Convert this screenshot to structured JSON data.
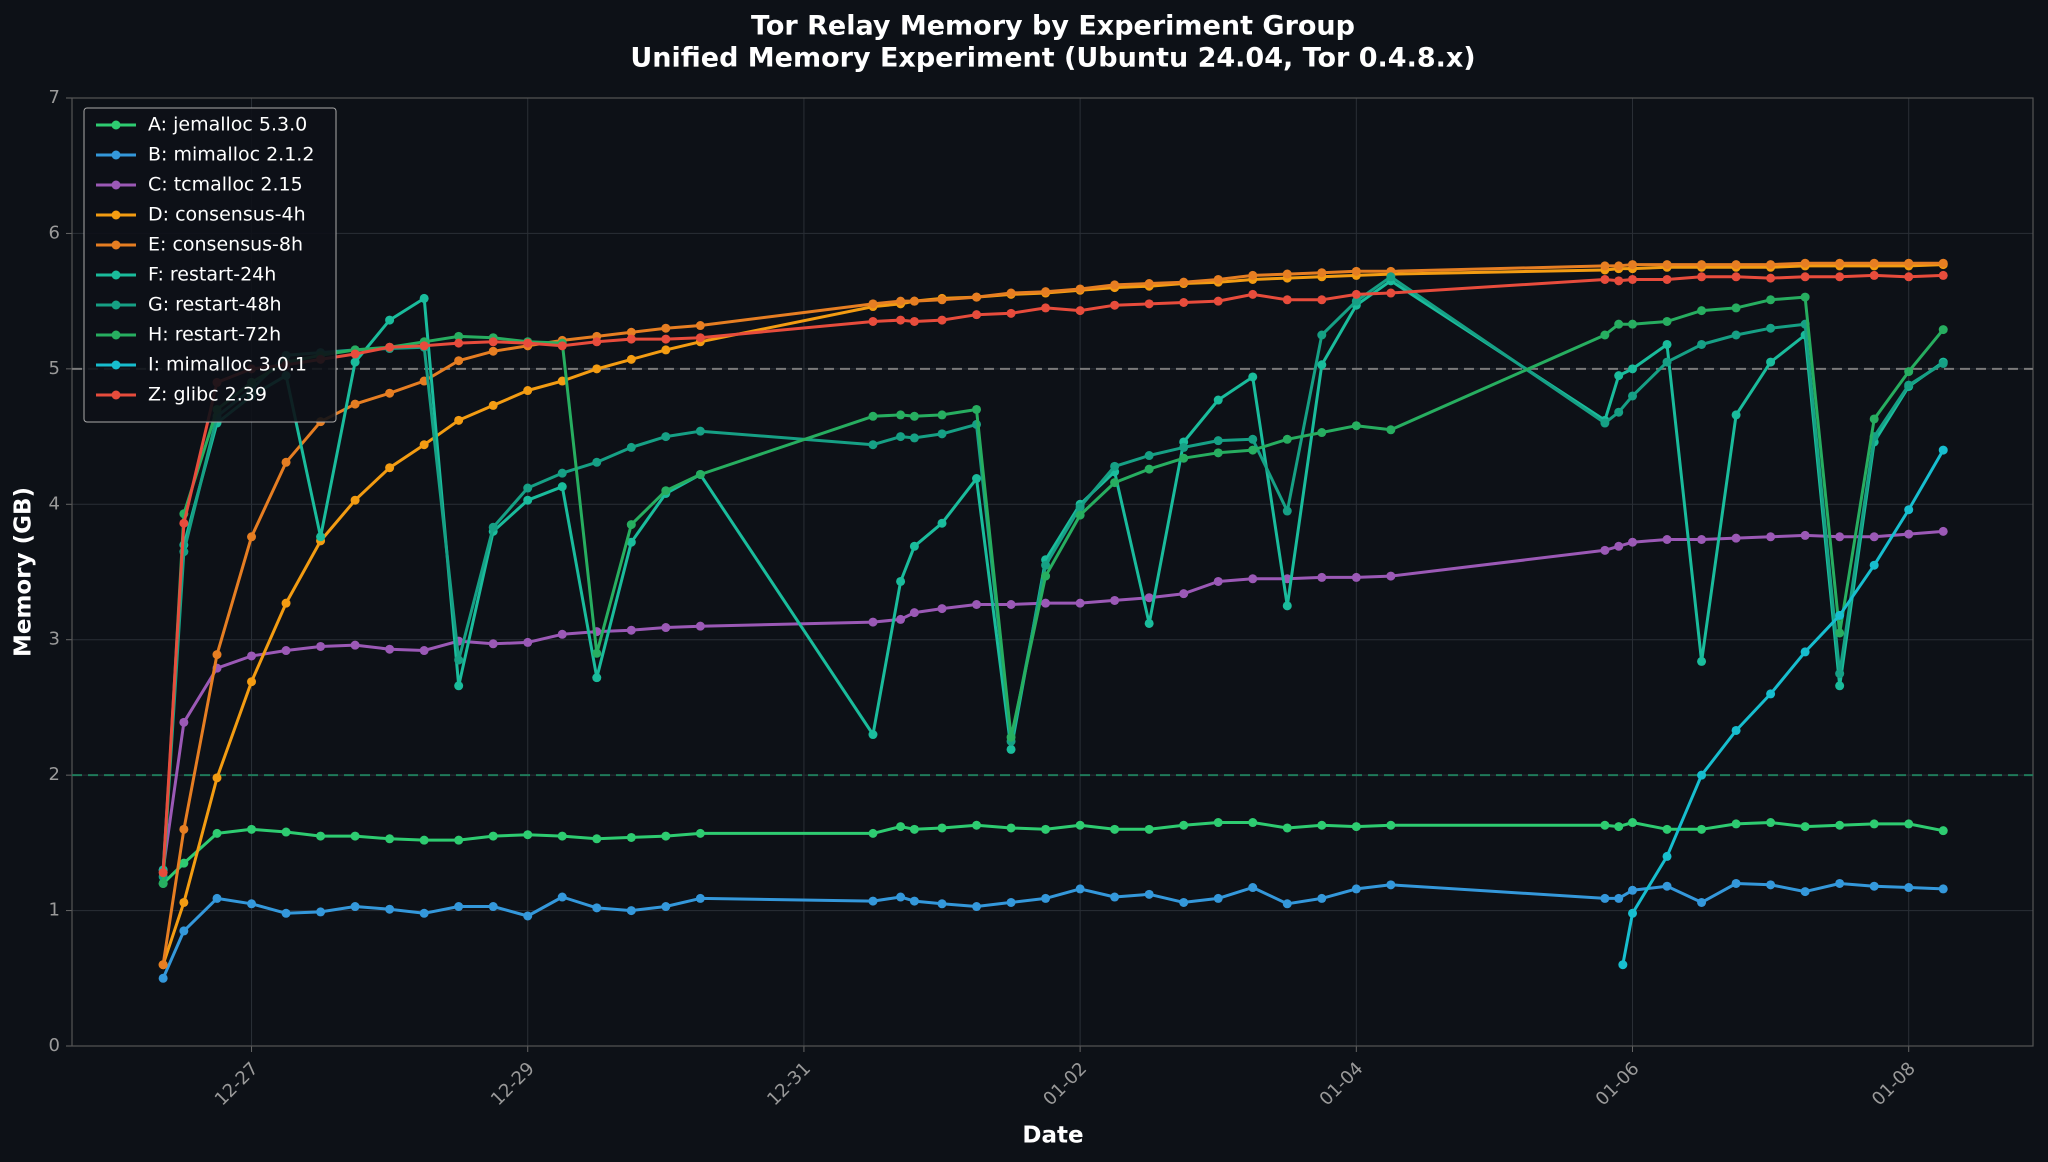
{
  "chart_data": {
    "type": "line",
    "title": "Tor Relay Memory by Experiment Group",
    "subtitle": "Unified Memory Experiment (Ubuntu 24.04, Tor 0.4.8.x)",
    "x_label": "Date",
    "y_label": "Memory (GB)",
    "xlim": [
      25.7,
      39.9
    ],
    "ylim": [
      0,
      7
    ],
    "xticks": [
      {
        "value": 27,
        "label": "12-27"
      },
      {
        "value": 29,
        "label": "12-29"
      },
      {
        "value": 31,
        "label": "12-31"
      },
      {
        "value": 33,
        "label": "01-02"
      },
      {
        "value": 35,
        "label": "01-04"
      },
      {
        "value": 37,
        "label": "01-06"
      },
      {
        "value": 39,
        "label": "01-08"
      }
    ],
    "yticks": [
      0,
      1,
      2,
      3,
      4,
      5,
      6,
      7
    ],
    "grid": true,
    "legend": "upper left",
    "hlines": [
      {
        "value": 5,
        "color": "#7a7a7a"
      },
      {
        "value": 2,
        "color": "#1f7a5a"
      }
    ],
    "x": [
      26.36,
      26.51,
      26.75,
      27,
      27.25,
      27.5,
      27.75,
      28,
      28.25,
      28.5,
      28.75,
      29,
      29.25,
      29.5,
      29.75,
      30,
      30.25,
      31.5,
      31.7,
      31.8,
      32,
      32.25,
      32.5,
      32.75,
      33,
      33.25,
      33.5,
      33.75,
      34,
      34.25,
      34.5,
      34.75,
      35,
      35.25,
      36.8,
      36.9,
      37,
      37.25,
      37.5,
      37.75,
      38,
      38.25,
      38.5,
      38.75,
      39,
      39.25
    ],
    "series": [
      {
        "name": "A: jemalloc 5.3.0",
        "color": "#2ecc71",
        "values": [
          1.2,
          1.35,
          1.57,
          1.6,
          1.58,
          1.55,
          1.55,
          1.53,
          1.52,
          1.52,
          1.55,
          1.56,
          1.55,
          1.53,
          1.54,
          1.55,
          1.57,
          1.57,
          1.62,
          1.6,
          1.61,
          1.63,
          1.61,
          1.6,
          1.63,
          1.6,
          1.6,
          1.63,
          1.65,
          1.65,
          1.61,
          1.63,
          1.62,
          1.63,
          1.63,
          1.62,
          1.65,
          1.6,
          1.6,
          1.64,
          1.65,
          1.62,
          1.63,
          1.64,
          1.64,
          1.59
        ]
      },
      {
        "name": "B: mimalloc 2.1.2",
        "color": "#3498db",
        "values": [
          0.5,
          0.85,
          1.09,
          1.05,
          0.98,
          0.99,
          1.03,
          1.01,
          0.98,
          1.03,
          1.03,
          0.96,
          1.1,
          1.02,
          1.0,
          1.03,
          1.09,
          1.07,
          1.1,
          1.07,
          1.05,
          1.03,
          1.06,
          1.09,
          1.16,
          1.1,
          1.12,
          1.06,
          1.09,
          1.17,
          1.05,
          1.09,
          1.16,
          1.19,
          1.09,
          1.09,
          1.15,
          1.18,
          1.06,
          1.2,
          1.19,
          1.14,
          1.2,
          1.18,
          1.17,
          1.16
        ]
      },
      {
        "name": "C: tcmalloc 2.15",
        "color": "#9b59b6",
        "values": [
          1.3,
          2.39,
          2.79,
          2.88,
          2.92,
          2.95,
          2.96,
          2.93,
          2.92,
          2.99,
          2.97,
          2.98,
          3.04,
          3.06,
          3.07,
          3.09,
          3.1,
          3.13,
          3.15,
          3.2,
          3.23,
          3.26,
          3.26,
          3.27,
          3.27,
          3.29,
          3.31,
          3.34,
          3.43,
          3.45,
          3.45,
          3.46,
          3.46,
          3.47,
          3.66,
          3.69,
          3.72,
          3.74,
          3.74,
          3.75,
          3.76,
          3.77,
          3.76,
          3.76,
          3.78,
          3.8
        ]
      },
      {
        "name": "D: consensus-4h",
        "color": "#f39c12",
        "values": [
          0.6,
          1.06,
          1.98,
          2.69,
          3.27,
          3.73,
          4.03,
          4.27,
          4.44,
          4.62,
          4.73,
          4.84,
          4.91,
          5.0,
          5.07,
          5.14,
          5.2,
          5.46,
          5.48,
          5.5,
          5.52,
          5.53,
          5.55,
          5.56,
          5.58,
          5.6,
          5.61,
          5.63,
          5.64,
          5.66,
          5.67,
          5.68,
          5.69,
          5.7,
          5.73,
          5.74,
          5.74,
          5.75,
          5.75,
          5.75,
          5.75,
          5.76,
          5.76,
          5.76,
          5.76,
          5.77
        ]
      },
      {
        "name": "E: consensus-8h",
        "color": "#e67e22",
        "values": [
          0.6,
          1.6,
          2.89,
          3.76,
          4.31,
          4.61,
          4.74,
          4.82,
          4.91,
          5.06,
          5.13,
          5.17,
          5.21,
          5.24,
          5.27,
          5.3,
          5.32,
          5.48,
          5.5,
          5.5,
          5.51,
          5.53,
          5.56,
          5.57,
          5.59,
          5.62,
          5.63,
          5.64,
          5.66,
          5.69,
          5.7,
          5.71,
          5.72,
          5.72,
          5.76,
          5.76,
          5.77,
          5.77,
          5.77,
          5.77,
          5.77,
          5.78,
          5.78,
          5.78,
          5.78,
          5.78
        ]
      },
      {
        "name": "F: restart-24h",
        "color": "#1abc9c",
        "values": [
          1.3,
          3.7,
          4.6,
          4.8,
          4.95,
          3.76,
          5.05,
          5.36,
          5.52,
          2.66,
          3.8,
          4.03,
          4.13,
          2.72,
          3.72,
          4.08,
          4.22,
          2.3,
          3.43,
          3.69,
          3.86,
          4.19,
          2.19,
          3.59,
          4.0,
          4.24,
          3.12,
          4.46,
          4.77,
          4.94,
          3.25,
          5.03,
          5.47,
          5.65,
          4.62,
          4.95,
          5.0,
          5.18,
          2.84,
          4.66,
          5.05,
          5.25,
          2.66,
          4.46,
          4.87,
          5.05
        ]
      },
      {
        "name": "G: restart-48h",
        "color": "#16a085",
        "values": [
          1.25,
          3.65,
          4.65,
          4.85,
          5.1,
          5.12,
          5.14,
          5.15,
          5.16,
          2.85,
          3.83,
          4.12,
          4.23,
          4.31,
          4.42,
          4.5,
          4.54,
          4.44,
          4.5,
          4.49,
          4.52,
          4.59,
          2.25,
          3.55,
          3.98,
          4.28,
          4.36,
          4.42,
          4.47,
          4.48,
          3.95,
          5.25,
          5.5,
          5.68,
          4.6,
          4.68,
          4.8,
          5.05,
          5.18,
          5.25,
          5.3,
          5.33,
          2.75,
          4.5,
          4.88,
          5.04
        ]
      },
      {
        "name": "H: restart-72h",
        "color": "#27ae60",
        "values": [
          1.2,
          3.93,
          4.7,
          4.9,
          5.05,
          5.1,
          5.14,
          5.16,
          5.2,
          5.24,
          5.23,
          5.2,
          5.19,
          2.9,
          3.85,
          4.1,
          4.22,
          4.65,
          4.66,
          4.65,
          4.66,
          4.7,
          2.28,
          3.47,
          3.92,
          4.16,
          4.26,
          4.34,
          4.38,
          4.4,
          4.48,
          4.53,
          4.58,
          4.55,
          5.25,
          5.33,
          5.33,
          5.35,
          5.43,
          5.45,
          5.51,
          5.53,
          3.05,
          4.63,
          4.98,
          5.29
        ]
      },
      {
        "name": "I: mimalloc 3.0.1",
        "color": "#17becf",
        "x": [
          36.93,
          37,
          37.25,
          37.5,
          37.75,
          38,
          38.25,
          38.5,
          38.75,
          39,
          39.25
        ],
        "values": [
          0.6,
          0.98,
          1.4,
          2.0,
          2.33,
          2.6,
          2.91,
          3.18,
          3.55,
          3.96,
          4.4
        ]
      },
      {
        "name": "Z: glibc 2.39",
        "color": "#e74c3c",
        "values": [
          1.28,
          3.86,
          4.9,
          5.0,
          5.03,
          5.07,
          5.11,
          5.16,
          5.17,
          5.19,
          5.2,
          5.19,
          5.17,
          5.2,
          5.22,
          5.22,
          5.23,
          5.35,
          5.36,
          5.35,
          5.36,
          5.4,
          5.41,
          5.45,
          5.43,
          5.47,
          5.48,
          5.49,
          5.5,
          5.55,
          5.51,
          5.51,
          5.55,
          5.56,
          5.66,
          5.65,
          5.66,
          5.66,
          5.68,
          5.68,
          5.67,
          5.68,
          5.68,
          5.69,
          5.68,
          5.69
        ]
      }
    ]
  }
}
